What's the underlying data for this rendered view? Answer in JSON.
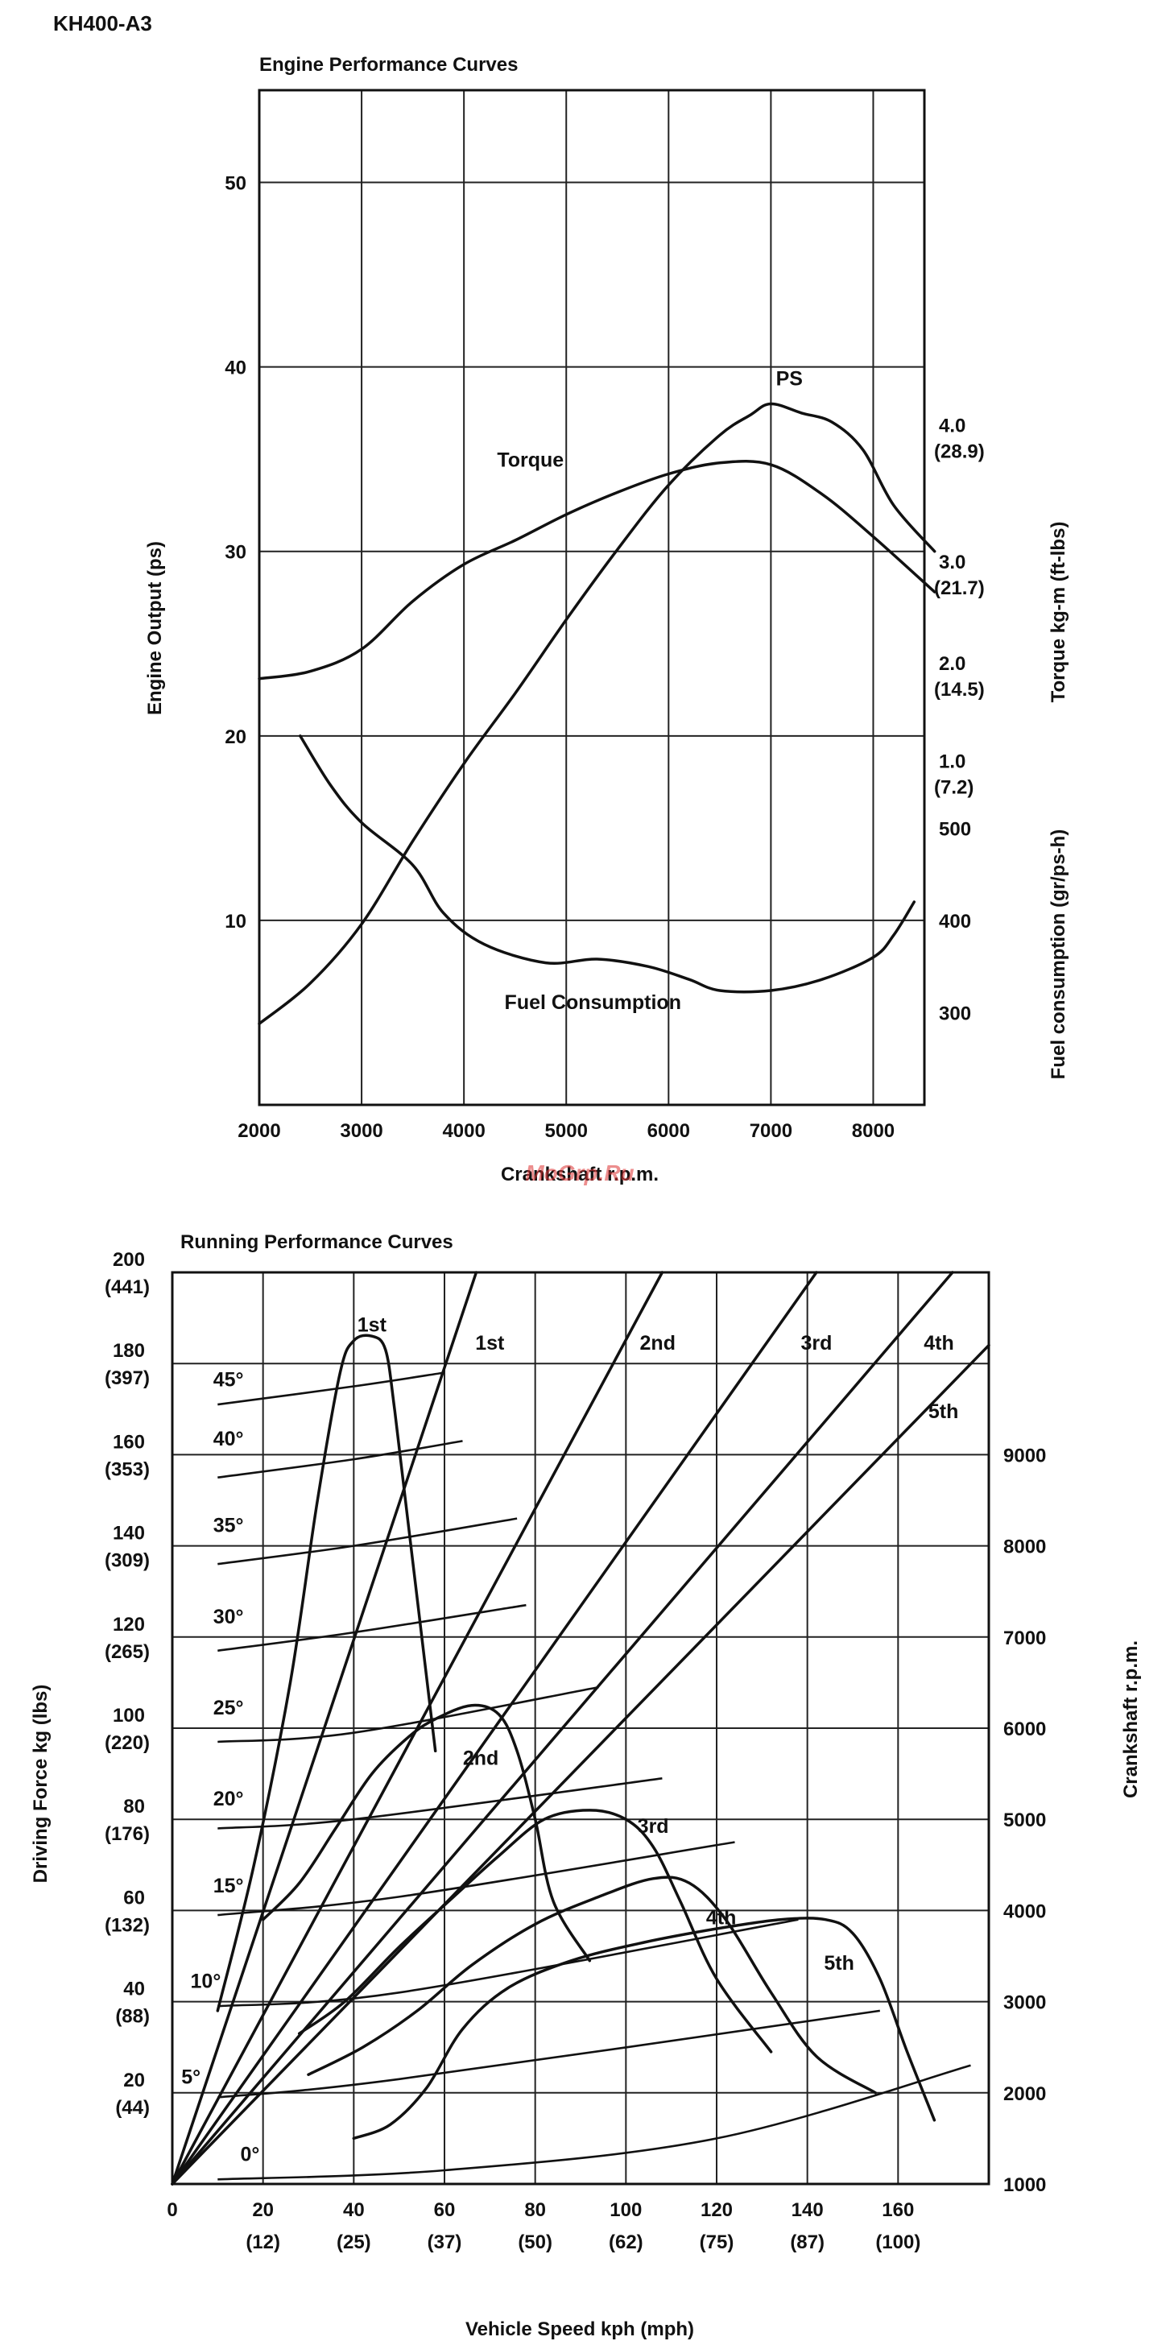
{
  "document": {
    "model": "KH400-A3",
    "watermark": "MoGrp.Ru"
  },
  "chart_data": [
    {
      "id": "engine",
      "type": "line",
      "title": "Engine Performance Curves",
      "xlabel": "Crankshaft r.p.m.",
      "ylabel": "Engine Output (ps)",
      "ylabel_right_torque": "Torque  kg-m (ft-lbs)",
      "ylabel_right_fuel": "Fuel consumption (gr/ps-h)",
      "xlim": [
        2000,
        8500
      ],
      "ylim": [
        0,
        55
      ],
      "x_ticks": [
        2000,
        3000,
        4000,
        5000,
        6000,
        7000,
        8000
      ],
      "y_ticks": [
        10,
        20,
        30,
        40,
        50
      ],
      "torque_ticks": [
        {
          "label": "4.0",
          "sub": "(28.9)",
          "y_ps": 36.2
        },
        {
          "label": "3.0",
          "sub": "(21.7)",
          "y_ps": 28.8
        },
        {
          "label": "2.0",
          "sub": "(14.5)",
          "y_ps": 23.3
        },
        {
          "label": "1.0",
          "sub": "(7.2)",
          "y_ps": 18.0
        }
      ],
      "fuel_ticks": [
        {
          "label": "500",
          "y_ps": 15.0
        },
        {
          "label": "400",
          "y_ps": 10.0
        },
        {
          "label": "300",
          "y_ps": 5.0
        }
      ],
      "grid": true,
      "series": [
        {
          "name": "PS",
          "label_at": {
            "x": 7180,
            "y": 39
          },
          "points": [
            [
              2000,
              4.4
            ],
            [
              2500,
              6.6
            ],
            [
              3000,
              9.8
            ],
            [
              3500,
              14.3
            ],
            [
              4000,
              18.5
            ],
            [
              4500,
              22.3
            ],
            [
              5000,
              26.3
            ],
            [
              5500,
              30.1
            ],
            [
              6000,
              33.6
            ],
            [
              6500,
              36.3
            ],
            [
              6800,
              37.4
            ],
            [
              7000,
              38
            ],
            [
              7300,
              37.5
            ],
            [
              7600,
              37
            ],
            [
              7900,
              35.5
            ],
            [
              8200,
              32.5
            ],
            [
              8600,
              30
            ]
          ]
        },
        {
          "name": "Torque",
          "label_at": {
            "x": 4650,
            "y": 34.6
          },
          "points": [
            [
              2000,
              23.1
            ],
            [
              2500,
              23.5
            ],
            [
              3000,
              24.7
            ],
            [
              3500,
              27.3
            ],
            [
              4000,
              29.3
            ],
            [
              4500,
              30.6
            ],
            [
              5000,
              32
            ],
            [
              5500,
              33.2
            ],
            [
              6000,
              34.2
            ],
            [
              6500,
              34.8
            ],
            [
              7000,
              34.7
            ],
            [
              7500,
              33.1
            ],
            [
              8000,
              30.8
            ],
            [
              8600,
              27.8
            ]
          ]
        },
        {
          "name": "Fuel Consumption",
          "label_at": {
            "x": 5260,
            "y": 5.2
          },
          "points": [
            [
              2400,
              20
            ],
            [
              2700,
              17.3
            ],
            [
              3000,
              15.3
            ],
            [
              3500,
              13
            ],
            [
              3800,
              10.4
            ],
            [
              4200,
              8.7
            ],
            [
              4800,
              7.7
            ],
            [
              5300,
              7.9
            ],
            [
              5800,
              7.5
            ],
            [
              6200,
              6.8
            ],
            [
              6500,
              6.2
            ],
            [
              7000,
              6.2
            ],
            [
              7500,
              6.8
            ],
            [
              8000,
              8
            ],
            [
              8200,
              9.2
            ],
            [
              8400,
              11
            ]
          ]
        }
      ]
    },
    {
      "id": "running",
      "type": "line",
      "title": "Running Performance Curves",
      "xlabel": "Vehicle Speed  kph (mph)",
      "ylabel": "Driving Force  kg (lbs)",
      "ylabel_right": "Crankshaft r.p.m.",
      "xlim": [
        0,
        180
      ],
      "ylim": [
        0,
        200
      ],
      "x_ticks": [
        {
          "v": 0,
          "l": "0",
          "s": ""
        },
        {
          "v": 20,
          "l": "20",
          "s": "(12)"
        },
        {
          "v": 40,
          "l": "40",
          "s": "(25)"
        },
        {
          "v": 60,
          "l": "60",
          "s": "(37)"
        },
        {
          "v": 80,
          "l": "80",
          "s": "(50)"
        },
        {
          "v": 100,
          "l": "100",
          "s": "(62)"
        },
        {
          "v": 120,
          "l": "120",
          "s": "(75)"
        },
        {
          "v": 140,
          "l": "140",
          "s": "(87)"
        },
        {
          "v": 160,
          "l": "160",
          "s": "(100)"
        }
      ],
      "y_ticks": [
        {
          "v": 20,
          "l": "20",
          "s": "(44)"
        },
        {
          "v": 40,
          "l": "40",
          "s": "(88)"
        },
        {
          "v": 60,
          "l": "60",
          "s": "(132)"
        },
        {
          "v": 80,
          "l": "80",
          "s": "(176)"
        },
        {
          "v": 100,
          "l": "100",
          "s": "(220)"
        },
        {
          "v": 120,
          "l": "120",
          "s": "(265)"
        },
        {
          "v": 140,
          "l": "140",
          "s": "(309)"
        },
        {
          "v": 160,
          "l": "160",
          "s": "(353)"
        },
        {
          "v": 180,
          "l": "180",
          "s": "(397)"
        },
        {
          "v": 200,
          "l": "200",
          "s": "(441)"
        }
      ],
      "rpm_ticks": [
        {
          "l": "9000",
          "y": 160
        },
        {
          "l": "8000",
          "y": 140
        },
        {
          "l": "7000",
          "y": 120
        },
        {
          "l": "6000",
          "y": 100
        },
        {
          "l": "5000",
          "y": 80
        },
        {
          "l": "4000",
          "y": 60
        },
        {
          "l": "3000",
          "y": 40
        },
        {
          "l": "2000",
          "y": 20
        },
        {
          "l": "1000",
          "y": 0
        }
      ],
      "grid": true,
      "gear_lines": [
        {
          "name": "1st",
          "to": [
            67,
            200
          ],
          "label_at": {
            "x": 70,
            "y": 183
          }
        },
        {
          "name": "2nd",
          "to": [
            108,
            200
          ],
          "label_at": {
            "x": 107,
            "y": 183
          }
        },
        {
          "name": "3rd",
          "to": [
            142,
            200
          ],
          "label_at": {
            "x": 142,
            "y": 183
          }
        },
        {
          "name": "4th",
          "to": [
            172,
            200
          ],
          "label_at": {
            "x": 169,
            "y": 183
          }
        },
        {
          "name": "5th",
          "to": [
            180,
            184
          ],
          "label_at": {
            "x": 170,
            "y": 168
          }
        }
      ],
      "force_curves": [
        {
          "name": "1st",
          "label_at": {
            "x": 44,
            "y": 187
          },
          "points": [
            [
              10,
              38
            ],
            [
              18,
              70
            ],
            [
              26,
              110
            ],
            [
              32,
              150
            ],
            [
              37,
              178
            ],
            [
              40,
              185
            ],
            [
              44,
              186
            ],
            [
              47,
              183
            ],
            [
              49,
              170
            ],
            [
              52,
              145
            ],
            [
              58,
              95
            ]
          ]
        },
        {
          "name": "2nd",
          "label_at": {
            "x": 68,
            "y": 92
          },
          "points": [
            [
              20,
              58
            ],
            [
              28,
              66
            ],
            [
              36,
              78
            ],
            [
              44,
              90
            ],
            [
              52,
              98
            ],
            [
              58,
              102
            ],
            [
              66,
              105
            ],
            [
              72,
              103
            ],
            [
              76,
              95
            ],
            [
              80,
              80
            ],
            [
              84,
              62
            ],
            [
              92,
              49
            ]
          ]
        },
        {
          "name": "3rd",
          "label_at": {
            "x": 106,
            "y": 77
          },
          "points": [
            [
              28,
              33
            ],
            [
              38,
              40
            ],
            [
              50,
              52
            ],
            [
              62,
              63
            ],
            [
              72,
              72
            ],
            [
              82,
              80
            ],
            [
              92,
              82
            ],
            [
              100,
              80
            ],
            [
              106,
              74
            ],
            [
              112,
              62
            ],
            [
              120,
              45
            ],
            [
              132,
              29
            ]
          ]
        },
        {
          "name": "4th",
          "label_at": {
            "x": 121,
            "y": 57
          },
          "points": [
            [
              30,
              24
            ],
            [
              42,
              30
            ],
            [
              54,
              38
            ],
            [
              66,
              48
            ],
            [
              80,
              57
            ],
            [
              94,
              63
            ],
            [
              106,
              67
            ],
            [
              114,
              66
            ],
            [
              122,
              58
            ],
            [
              132,
              42
            ],
            [
              142,
              28
            ],
            [
              155,
              20
            ]
          ]
        },
        {
          "name": "5th",
          "label_at": {
            "x": 147,
            "y": 47
          },
          "points": [
            [
              40,
              10
            ],
            [
              48,
              13
            ],
            [
              56,
              21
            ],
            [
              64,
              34
            ],
            [
              74,
              43
            ],
            [
              88,
              49
            ],
            [
              104,
              53
            ],
            [
              120,
              56
            ],
            [
              134,
              58
            ],
            [
              144,
              58
            ],
            [
              150,
              55
            ],
            [
              156,
              45
            ],
            [
              162,
              29
            ],
            [
              168,
              14
            ]
          ]
        }
      ],
      "grade_lines": [
        {
          "name": "45°",
          "label_at": {
            "x": 9,
            "y": 175
          },
          "points": [
            [
              10,
              171
            ],
            [
              40,
              175
            ],
            [
              60,
              178
            ]
          ]
        },
        {
          "name": "40°",
          "label_at": {
            "x": 9,
            "y": 162
          },
          "points": [
            [
              10,
              155
            ],
            [
              40,
              159
            ],
            [
              64,
              163
            ]
          ]
        },
        {
          "name": "35°",
          "label_at": {
            "x": 9,
            "y": 143
          },
          "points": [
            [
              10,
              136
            ],
            [
              40,
              140
            ],
            [
              76,
              146
            ]
          ]
        },
        {
          "name": "30°",
          "label_at": {
            "x": 9,
            "y": 123
          },
          "points": [
            [
              10,
              117
            ],
            [
              40,
              121
            ],
            [
              78,
              127
            ]
          ]
        },
        {
          "name": "25°",
          "label_at": {
            "x": 9,
            "y": 103
          },
          "points": [
            [
              10,
              97
            ],
            [
              40,
              99
            ],
            [
              94,
              109
            ]
          ]
        },
        {
          "name": "20°",
          "label_at": {
            "x": 9,
            "y": 83
          },
          "points": [
            [
              10,
              78
            ],
            [
              40,
              80
            ],
            [
              108,
              89
            ]
          ]
        },
        {
          "name": "15°",
          "label_at": {
            "x": 9,
            "y": 64
          },
          "points": [
            [
              10,
              59
            ],
            [
              50,
              63
            ],
            [
              124,
              75
            ]
          ]
        },
        {
          "name": "10°",
          "label_at": {
            "x": 4,
            "y": 43
          },
          "points": [
            [
              10,
              39
            ],
            [
              50,
              42
            ],
            [
              138,
              58
            ]
          ]
        },
        {
          "name": "5°",
          "label_at": {
            "x": 2,
            "y": 22
          },
          "points": [
            [
              10,
              19
            ],
            [
              50,
              23
            ],
            [
              156,
              38
            ]
          ]
        },
        {
          "name": "0°",
          "label_at": {
            "x": 15,
            "y": 5
          },
          "points": [
            [
              10,
              1
            ],
            [
              60,
              3
            ],
            [
              120,
              10
            ],
            [
              176,
              26
            ]
          ]
        }
      ]
    }
  ]
}
